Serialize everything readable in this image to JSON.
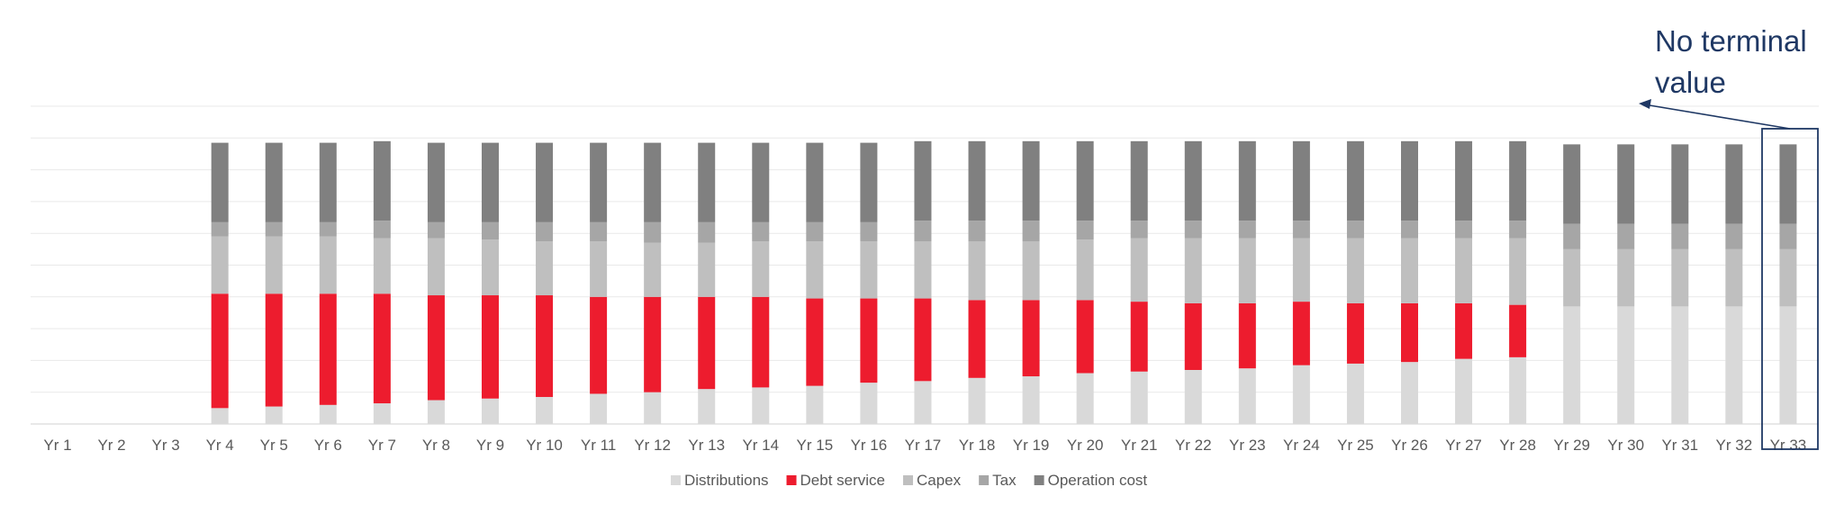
{
  "chart_data": {
    "type": "bar",
    "stacked": true,
    "categories": [
      "Yr 1",
      "Yr 2",
      "Yr 3",
      "Yr 4",
      "Yr 5",
      "Yr 6",
      "Yr 7",
      "Yr 8",
      "Yr 9",
      "Yr 10",
      "Yr 11",
      "Yr 12",
      "Yr 13",
      "Yr 14",
      "Yr 15",
      "Yr 16",
      "Yr 17",
      "Yr 18",
      "Yr 19",
      "Yr 20",
      "Yr 21",
      "Yr 22",
      "Yr 23",
      "Yr 24",
      "Yr 25",
      "Yr 26",
      "Yr 27",
      "Yr 28",
      "Yr 29",
      "Yr 30",
      "Yr 31",
      "Yr 32",
      "Yr 33"
    ],
    "series": [
      {
        "name": "Distributions",
        "color": "#d9d9d9",
        "values": [
          0,
          0,
          0,
          5,
          5.5,
          6,
          6.5,
          7.5,
          8,
          8.5,
          9.5,
          10,
          11,
          11.5,
          12,
          13,
          13.5,
          14.5,
          15,
          16,
          16.5,
          17,
          17.5,
          18.5,
          19,
          19.5,
          20.5,
          21,
          37,
          37,
          37,
          37,
          37
        ]
      },
      {
        "name": "Debt service",
        "color": "#ed1c2e",
        "values": [
          0,
          0,
          0,
          36,
          35.5,
          35,
          34.5,
          33,
          32.5,
          32,
          30.5,
          30,
          29,
          28.5,
          27.5,
          26.5,
          26,
          24.5,
          24,
          23,
          22,
          21,
          20.5,
          20,
          19,
          18.5,
          17.5,
          16.5,
          0,
          0,
          0,
          0,
          0
        ]
      },
      {
        "name": "Capex",
        "color": "#bfbfbf",
        "values": [
          0,
          0,
          0,
          18,
          18,
          18,
          17.5,
          18,
          17.5,
          17,
          17.5,
          17,
          17,
          17.5,
          18,
          18,
          18,
          18.5,
          18.5,
          19,
          20,
          20.5,
          20.5,
          20,
          20.5,
          20.5,
          20.5,
          21,
          18,
          18,
          18,
          18,
          18
        ]
      },
      {
        "name": "Tax",
        "color": "#a6a6a6",
        "values": [
          0,
          0,
          0,
          4.5,
          4.5,
          4.5,
          5.5,
          5,
          5.5,
          6,
          6,
          6.5,
          6.5,
          6,
          6,
          6,
          6.5,
          6.5,
          6.5,
          6,
          5.5,
          5.5,
          5.5,
          5.5,
          5.5,
          5.5,
          5.5,
          5.5,
          8,
          8,
          8,
          8,
          8
        ]
      },
      {
        "name": "Operation cost",
        "color": "#808080",
        "values": [
          0,
          0,
          0,
          25,
          25,
          25,
          25,
          25,
          25,
          25,
          25,
          25,
          25,
          25,
          25,
          25,
          25,
          25,
          25,
          25,
          25,
          25,
          25,
          25,
          25,
          25,
          25,
          25,
          25,
          25,
          25,
          25,
          25
        ]
      }
    ],
    "ylim": [
      0,
      100
    ],
    "grid": true,
    "legend_position": "bottom",
    "annotation": {
      "lines": [
        "No terminal",
        "value"
      ],
      "highlight_category": "Yr 33"
    }
  }
}
